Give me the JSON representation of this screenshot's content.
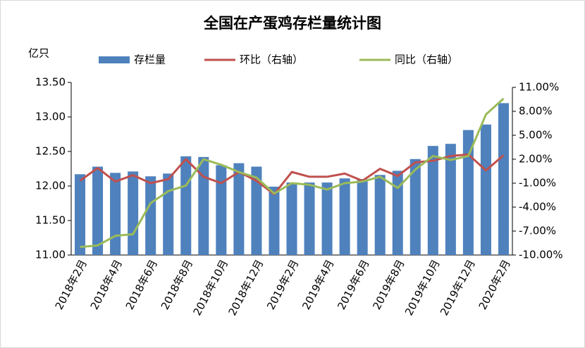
{
  "chart_data": {
    "type": "bar-line",
    "title": "全国在产蛋鸡存栏量统计图",
    "y_label": "亿只",
    "categories": [
      "2018年2月",
      null,
      "2018年4月",
      null,
      "2018年6月",
      null,
      "2018年8月",
      null,
      "2018年10月",
      null,
      "2018年12月",
      null,
      "2019年2月",
      null,
      "2019年4月",
      null,
      "2019年6月",
      null,
      "2019年8月",
      null,
      "2019年10月",
      null,
      "2019年12月",
      null,
      "2020年2月"
    ],
    "series": [
      {
        "name": "存栏量",
        "type": "bar",
        "color": "#4f81bd",
        "values": [
          12.17,
          12.28,
          12.19,
          12.21,
          12.14,
          12.18,
          12.43,
          12.42,
          12.3,
          12.33,
          12.28,
          11.99,
          12.05,
          12.05,
          12.05,
          12.11,
          12.1,
          12.16,
          12.22,
          12.39,
          12.58,
          12.61,
          12.81,
          12.89,
          13.2
        ]
      },
      {
        "name": "环比（右轴）",
        "type": "line",
        "axis": "y2",
        "color": "#c0504d",
        "values": [
          -0.7,
          0.9,
          -0.8,
          0.0,
          -1.0,
          -0.5,
          2.0,
          -0.2,
          -1.0,
          0.4,
          -0.7,
          -2.4,
          0.4,
          -0.2,
          -0.2,
          0.2,
          -0.7,
          0.8,
          -0.1,
          1.6,
          1.8,
          2.4,
          2.6,
          0.6,
          2.5
        ]
      },
      {
        "name": "同比（右轴）",
        "type": "line",
        "axis": "y2",
        "color": "#9bbb59",
        "values": [
          -9.0,
          -8.8,
          -7.6,
          -7.4,
          -3.5,
          -2.0,
          -1.3,
          2.0,
          1.3,
          0.4,
          -0.3,
          -2.3,
          -1.0,
          -1.2,
          -1.8,
          -1.0,
          -0.8,
          -0.2,
          -1.6,
          0.7,
          2.4,
          1.9,
          2.4,
          7.6,
          9.6
        ]
      }
    ],
    "ylim": [
      11,
      13.5
    ],
    "yticks": [
      {
        "value": 11,
        "label": "11.00"
      },
      {
        "value": 11.5,
        "label": "11.50"
      },
      {
        "value": 12,
        "label": "12.00"
      },
      {
        "value": 12.5,
        "label": "12.50"
      },
      {
        "value": 13,
        "label": "13.00"
      },
      {
        "value": 13.5,
        "label": "13.50"
      }
    ],
    "y2lim": [
      -10,
      11
    ],
    "y2ticks": [
      {
        "value": -10,
        "label": "-10.00%"
      },
      {
        "value": -7,
        "label": "-7.00%"
      },
      {
        "value": -4,
        "label": "-4.00%"
      },
      {
        "value": -1,
        "label": "-1.00%"
      },
      {
        "value": 2,
        "label": "2.00%"
      },
      {
        "value": 5,
        "label": "5.00%"
      },
      {
        "value": 8,
        "label": "8.00%"
      },
      {
        "value": 11,
        "label": "11.00%"
      }
    ],
    "grid": false
  }
}
